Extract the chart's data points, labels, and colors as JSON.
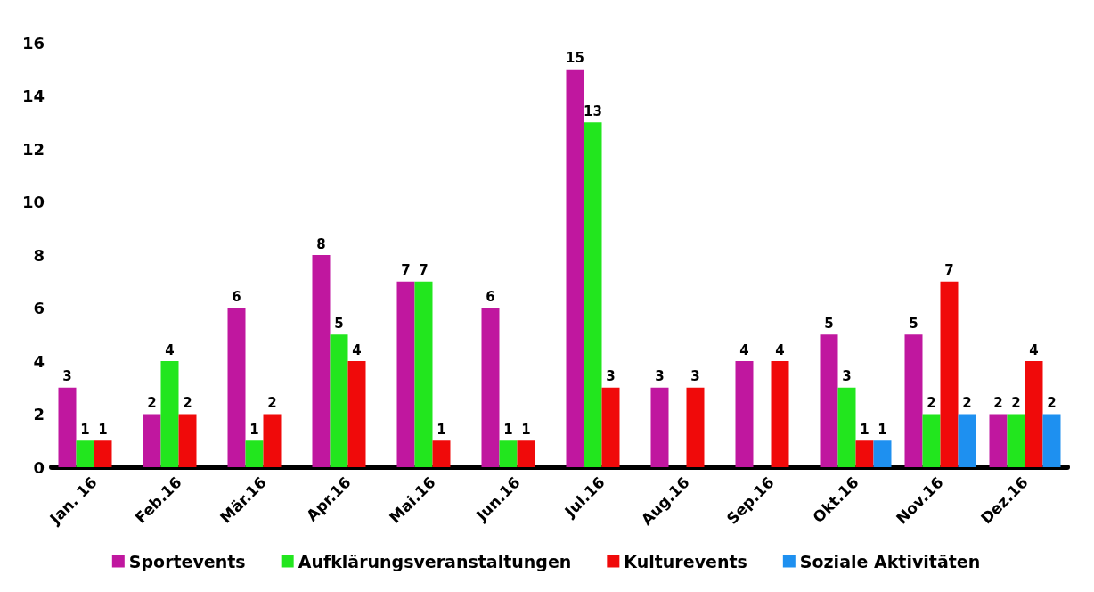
{
  "chart_data": {
    "type": "bar",
    "categories": [
      "Jan. 16",
      "Feb.16",
      "Mär.16",
      "Apr.16",
      "Mai.16",
      "Jun.16",
      "Jul.16",
      "Aug.16",
      "Sep.16",
      "Okt.16",
      "Nov.16",
      "Dez.16"
    ],
    "series": [
      {
        "name": "Sportevents",
        "color": "#c0179f",
        "values": [
          3,
          2,
          6,
          8,
          7,
          6,
          15,
          3,
          4,
          5,
          5,
          2
        ]
      },
      {
        "name": "Aufklärungsveranstaltungen",
        "color": "#22e61e",
        "values": [
          1,
          4,
          1,
          5,
          7,
          1,
          13,
          null,
          null,
          3,
          2,
          2
        ]
      },
      {
        "name": "Kulturevents",
        "color": "#f00a0a",
        "values": [
          1,
          2,
          2,
          4,
          1,
          1,
          3,
          3,
          4,
          1,
          7,
          4
        ]
      },
      {
        "name": "Soziale Aktivitäten",
        "color": "#1e90f0",
        "values": [
          null,
          null,
          null,
          null,
          null,
          null,
          null,
          null,
          null,
          1,
          2,
          2
        ]
      }
    ],
    "ylim": [
      0,
      16
    ],
    "yticks": [
      0,
      2,
      4,
      6,
      8,
      10,
      12,
      14,
      16
    ],
    "grid": false,
    "legend": "bottom",
    "data_labels": true
  }
}
